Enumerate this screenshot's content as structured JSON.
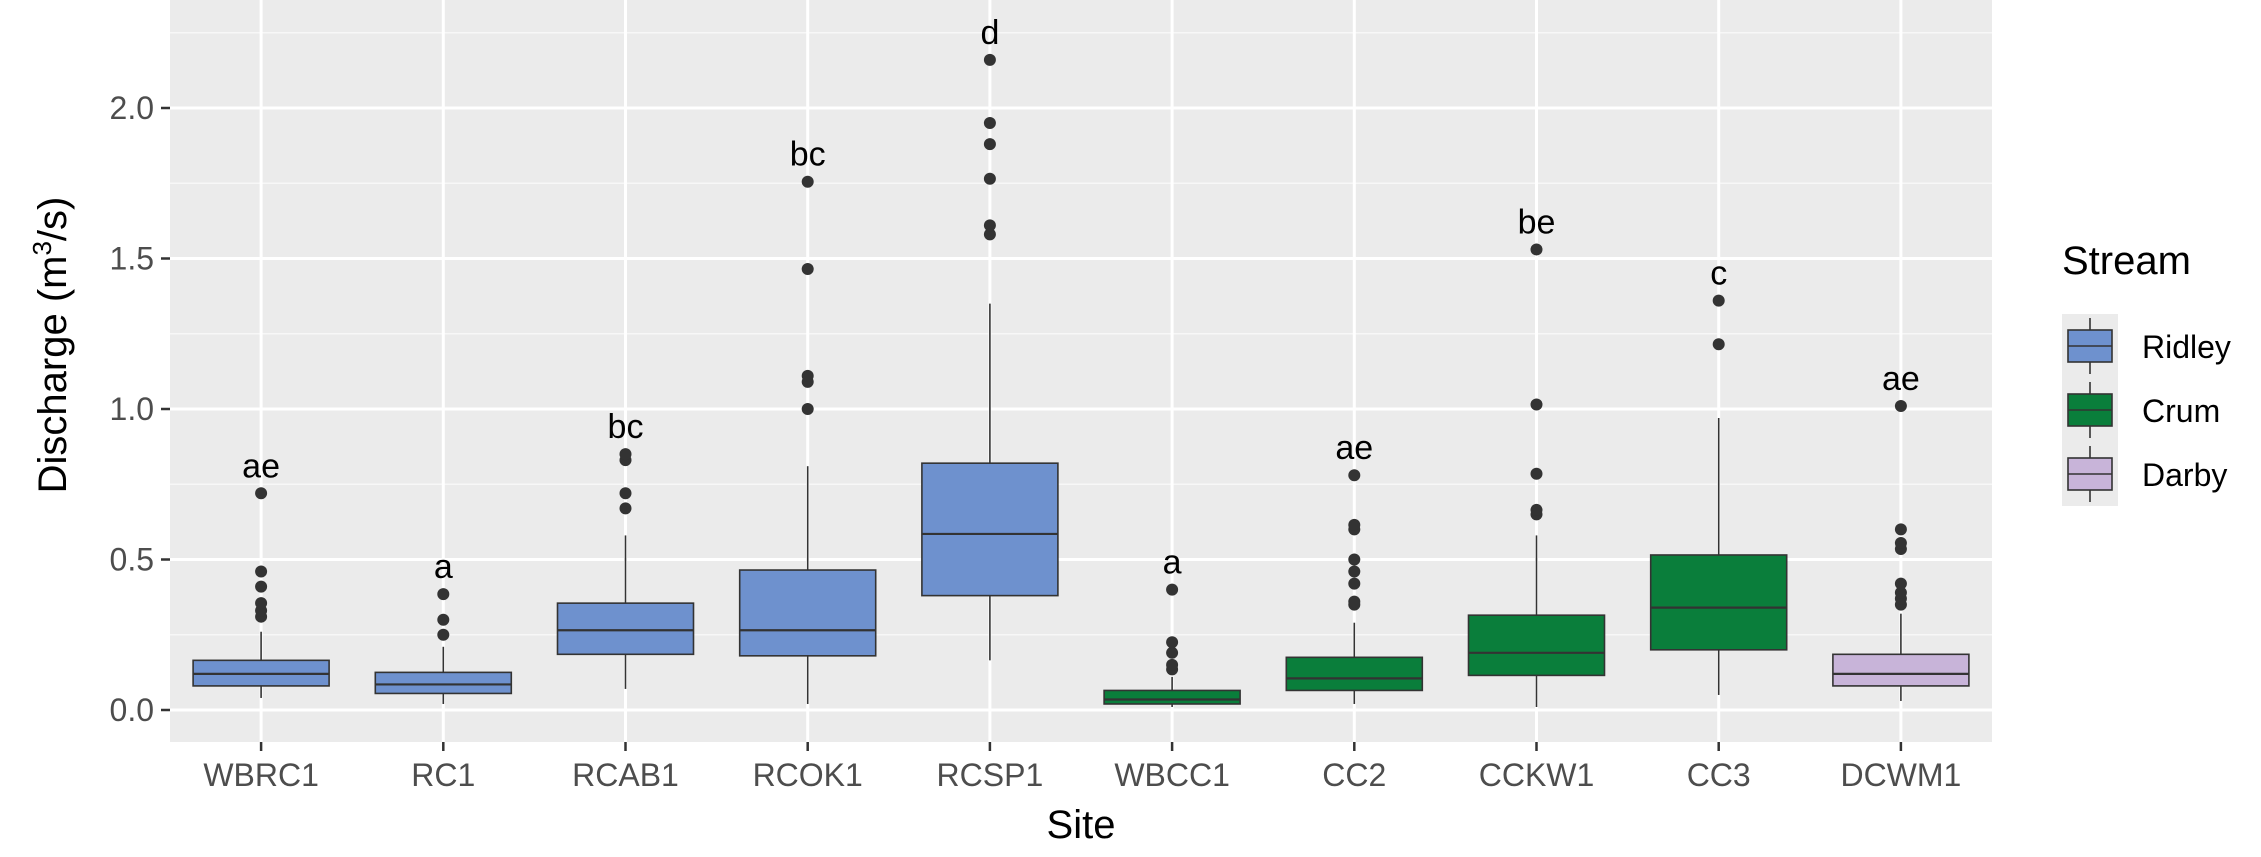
{
  "chart_data": {
    "type": "boxplot",
    "xlabel": "Site",
    "ylabel_main": "Discharge (m",
    "ylabel_sup": "3",
    "ylabel_end": "/s)",
    "ylim": [
      -0.1,
      2.3
    ],
    "y_ticks": [
      0.0,
      0.5,
      1.0,
      1.5,
      2.0
    ],
    "y_tick_labels": [
      "0.0",
      "0.5",
      "1.0",
      "1.5",
      "2.0"
    ],
    "grid": true,
    "legend": {
      "title": "Stream",
      "position": "right",
      "entries": [
        {
          "name": "Ridley",
          "color": "#6E91CE"
        },
        {
          "name": "Crum",
          "color": "#0A7E3B"
        },
        {
          "name": "Darby",
          "color": "#C8B4D9"
        }
      ]
    },
    "sites": [
      {
        "site": "WBRC1",
        "stream": "Ridley",
        "min": 0.04,
        "q1": 0.08,
        "median": 0.12,
        "q3": 0.165,
        "max": 0.26,
        "outliers": [
          0.31,
          0.33,
          0.355,
          0.41,
          0.46,
          0.72
        ],
        "letter": "ae"
      },
      {
        "site": "RC1",
        "stream": "Ridley",
        "min": 0.02,
        "q1": 0.055,
        "median": 0.085,
        "q3": 0.125,
        "max": 0.21,
        "outliers": [
          0.25,
          0.3,
          0.385
        ],
        "letter": "a"
      },
      {
        "site": "RCAB1",
        "stream": "Ridley",
        "min": 0.07,
        "q1": 0.185,
        "median": 0.265,
        "q3": 0.355,
        "max": 0.58,
        "outliers": [
          0.67,
          0.72,
          0.83,
          0.85
        ],
        "letter": "bc"
      },
      {
        "site": "RCOK1",
        "stream": "Ridley",
        "min": 0.02,
        "q1": 0.18,
        "median": 0.265,
        "q3": 0.465,
        "max": 0.81,
        "outliers": [
          1.0,
          1.09,
          1.11,
          1.465,
          1.755
        ],
        "letter": "bc"
      },
      {
        "site": "RCSP1",
        "stream": "Ridley",
        "min": 0.165,
        "q1": 0.38,
        "median": 0.585,
        "q3": 0.82,
        "max": 1.35,
        "outliers": [
          1.58,
          1.61,
          1.765,
          1.88,
          1.95,
          2.16
        ],
        "letter": "d"
      },
      {
        "site": "WBCC1",
        "stream": "Crum",
        "min": 0.01,
        "q1": 0.02,
        "median": 0.035,
        "q3": 0.065,
        "max": 0.11,
        "outliers": [
          0.135,
          0.15,
          0.19,
          0.225,
          0.4
        ],
        "letter": "a"
      },
      {
        "site": "CC2",
        "stream": "Crum",
        "min": 0.02,
        "q1": 0.065,
        "median": 0.105,
        "q3": 0.175,
        "max": 0.29,
        "outliers": [
          0.35,
          0.36,
          0.42,
          0.46,
          0.5,
          0.6,
          0.615,
          0.78
        ],
        "letter": "ae"
      },
      {
        "site": "CCKW1",
        "stream": "Crum",
        "min": 0.01,
        "q1": 0.115,
        "median": 0.19,
        "q3": 0.315,
        "max": 0.58,
        "outliers": [
          0.65,
          0.665,
          0.785,
          1.015,
          1.53
        ],
        "letter": "be"
      },
      {
        "site": "CC3",
        "stream": "Crum",
        "min": 0.05,
        "q1": 0.2,
        "median": 0.34,
        "q3": 0.515,
        "max": 0.97,
        "outliers": [
          1.215,
          1.36
        ],
        "letter": "c"
      },
      {
        "site": "DCWM1",
        "stream": "Darby",
        "min": 0.03,
        "q1": 0.08,
        "median": 0.12,
        "q3": 0.185,
        "max": 0.32,
        "outliers": [
          0.35,
          0.37,
          0.39,
          0.42,
          0.535,
          0.555,
          0.6,
          1.01
        ],
        "letter": "ae"
      }
    ]
  }
}
